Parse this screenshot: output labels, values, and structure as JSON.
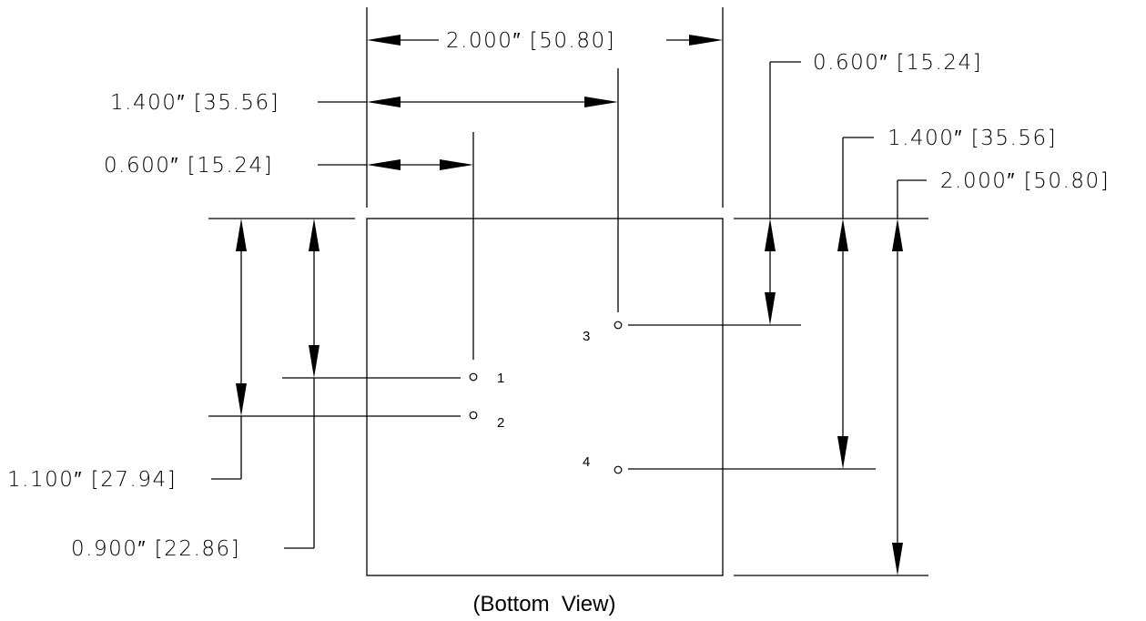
{
  "dimensions": {
    "width_top": "2.000″ [50.80]",
    "pin3_from_left": "1.400″ [35.56]",
    "pin1_from_left": "0.600″ [15.24]",
    "pin3_from_top": "0.600″ [15.24]",
    "pin4_from_top": "1.400″ [35.56]",
    "height_right": "2.000″ [50.80]",
    "pin2_from_top": "1.100″ [27.94]",
    "pin1_from_top": "0.900″ [22.86]"
  },
  "pins": {
    "p1": "1",
    "p2": "2",
    "p3": "3",
    "p4": "4"
  },
  "caption": "(Bottom  View)"
}
